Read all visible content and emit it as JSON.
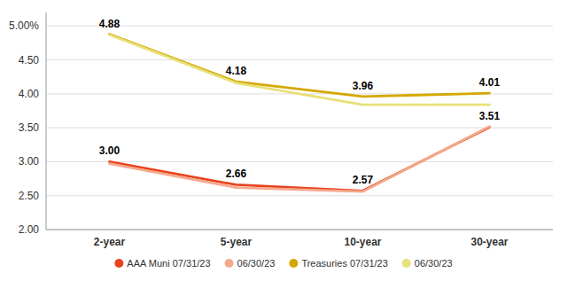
{
  "chart_data": {
    "type": "line",
    "categories": [
      "2-year",
      "5-year",
      "10-year",
      "30-year"
    ],
    "series": [
      {
        "name": "AAA Muni 07/31/23",
        "color": "#E8431E",
        "values": [
          3.0,
          2.66,
          2.57,
          3.51
        ],
        "data_labels": true,
        "value_labels": [
          "3.00",
          "2.66",
          "2.57",
          "3.51"
        ]
      },
      {
        "name": "06/30/23",
        "color": "#F5A98C",
        "values": [
          2.97,
          2.62,
          2.56,
          3.52
        ]
      },
      {
        "name": "Treasuries 07/31/23",
        "color": "#D4A800",
        "values": [
          4.88,
          4.18,
          3.96,
          4.01
        ],
        "data_labels": true,
        "value_labels": [
          "4.88",
          "4.18",
          "3.96",
          "4.01"
        ]
      },
      {
        "name": "06/30/23",
        "color": "#E8E07A",
        "values": [
          4.87,
          4.16,
          3.84,
          3.84
        ]
      }
    ],
    "ylim": [
      2.0,
      5.2
    ],
    "yticks": [
      {
        "value": 2.0,
        "label": "2.00"
      },
      {
        "value": 2.5,
        "label": "2.50"
      },
      {
        "value": 3.0,
        "label": "3.00"
      },
      {
        "value": 3.5,
        "label": "3.50"
      },
      {
        "value": 4.0,
        "label": "4.00"
      },
      {
        "value": 4.5,
        "label": "4.50"
      },
      {
        "value": 5.0,
        "label": "5.00%"
      }
    ],
    "grid": true,
    "legend": "bottom"
  }
}
